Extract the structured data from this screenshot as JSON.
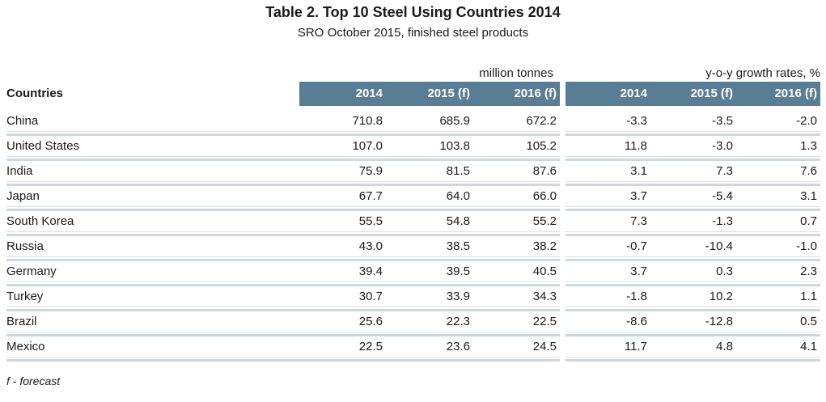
{
  "title": "Table 2. Top 10 Steel Using Countries 2014",
  "subtitle": "SRO October 2015, finished steel products",
  "table": {
    "countries_header": "Countries",
    "left_group_label": "million tonnes",
    "right_group_label": "y-o-y growth rates, %",
    "year_headers": [
      "2014",
      "2015 (f)",
      "2016 (f)"
    ],
    "rows": [
      {
        "country": "China",
        "million_tonnes": [
          "710.8",
          "685.9",
          "672.2"
        ],
        "growth_rates": [
          "-3.3",
          "-3.5",
          "-2.0"
        ]
      },
      {
        "country": "United States",
        "million_tonnes": [
          "107.0",
          "103.8",
          "105.2"
        ],
        "growth_rates": [
          "11.8",
          "-3.0",
          "1.3"
        ]
      },
      {
        "country": "India",
        "million_tonnes": [
          "75.9",
          "81.5",
          "87.6"
        ],
        "growth_rates": [
          "3.1",
          "7.3",
          "7.6"
        ]
      },
      {
        "country": "Japan",
        "million_tonnes": [
          "67.7",
          "64.0",
          "66.0"
        ],
        "growth_rates": [
          "3.7",
          "-5.4",
          "3.1"
        ]
      },
      {
        "country": "South Korea",
        "million_tonnes": [
          "55.5",
          "54.8",
          "55.2"
        ],
        "growth_rates": [
          "7.3",
          "-1.3",
          "0.7"
        ]
      },
      {
        "country": "Russia",
        "million_tonnes": [
          "43.0",
          "38.5",
          "38.2"
        ],
        "growth_rates": [
          "-0.7",
          "-10.4",
          "-1.0"
        ]
      },
      {
        "country": "Germany",
        "million_tonnes": [
          "39.4",
          "39.5",
          "40.5"
        ],
        "growth_rates": [
          "3.7",
          "0.3",
          "2.3"
        ]
      },
      {
        "country": "Turkey",
        "million_tonnes": [
          "30.7",
          "33.9",
          "34.3"
        ],
        "growth_rates": [
          "-1.8",
          "10.2",
          "1.1"
        ]
      },
      {
        "country": "Brazil",
        "million_tonnes": [
          "25.6",
          "22.3",
          "22.5"
        ],
        "growth_rates": [
          "-8.6",
          "-12.8",
          "0.5"
        ]
      },
      {
        "country": "Mexico",
        "million_tonnes": [
          "22.5",
          "23.6",
          "24.5"
        ],
        "growth_rates": [
          "11.7",
          "4.8",
          "4.1"
        ]
      }
    ]
  },
  "footnote": "f - forecast",
  "colors": {
    "header_band": "#5a7d96",
    "header_band_text": "#ffffff",
    "divider_thin_line": "#d9e0e5",
    "divider_thick_line": "#ccd7de",
    "body_text": "#1a1a1a",
    "background": "#ffffff"
  }
}
